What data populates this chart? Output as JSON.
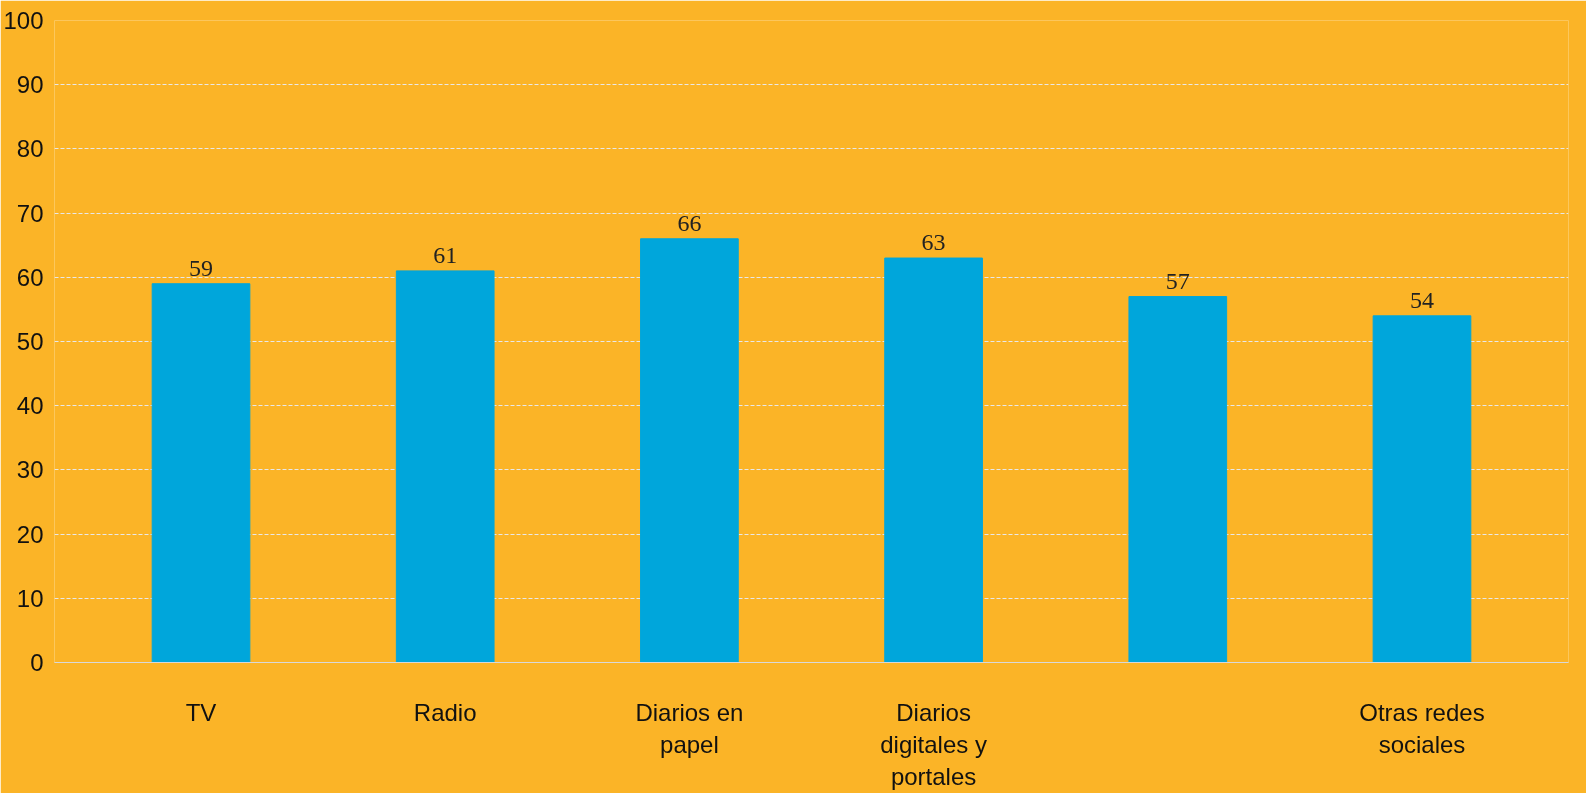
{
  "chart_data": {
    "type": "bar",
    "categories": [
      "TV",
      "Radio",
      "Diarios en papel",
      "Diarios digitales y portales",
      null,
      "Otras redes sociales"
    ],
    "values": [
      59,
      61,
      66,
      63,
      57,
      54
    ],
    "color": "#00a6db",
    "ylim": [
      0,
      100
    ],
    "yticks": [
      0,
      10,
      20,
      30,
      40,
      50,
      60,
      70,
      80,
      90,
      100
    ],
    "grid": "y",
    "data_labels": true
  }
}
